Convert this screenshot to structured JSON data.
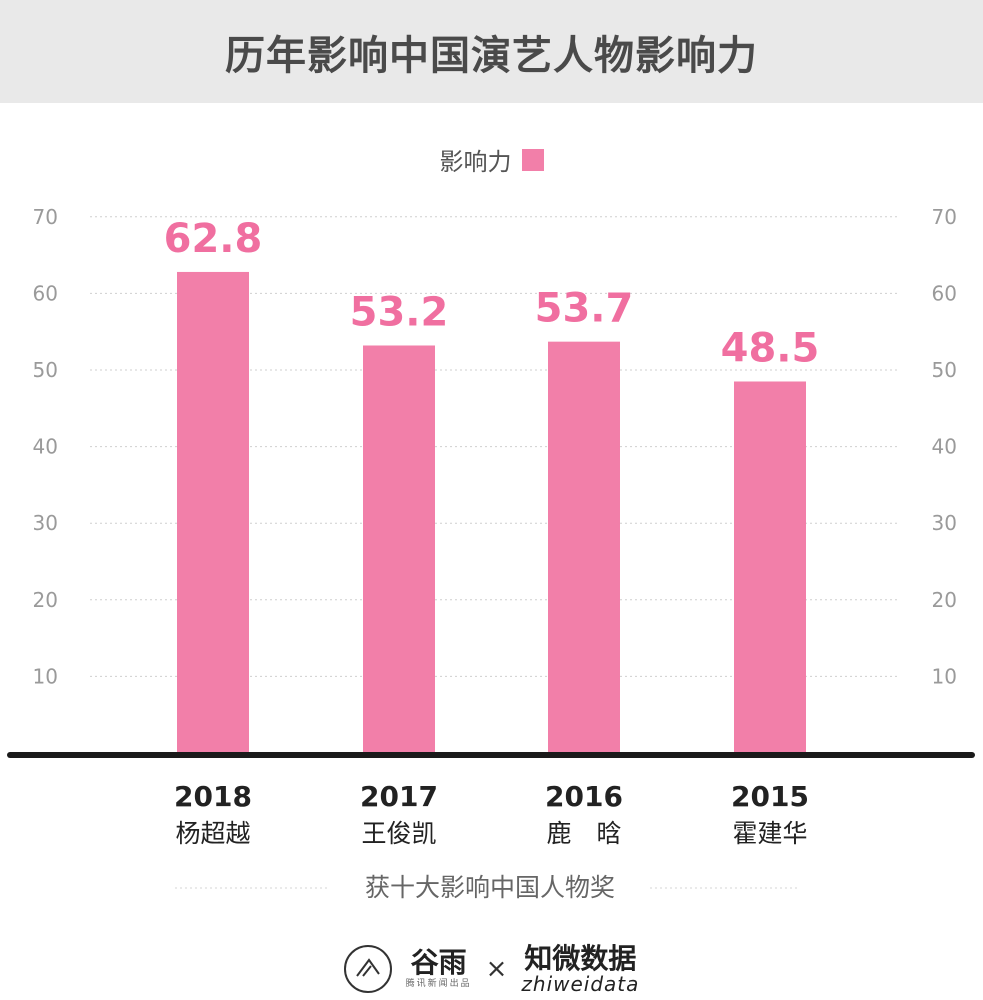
{
  "title": "历年影响中国演艺人物影响力",
  "footer": {
    "brand_left": "谷雨",
    "brand_left_sub": "腾讯新闻出品",
    "separator": "×",
    "brand_right": "知微数据",
    "brand_right_en": "zhiweidata"
  },
  "chart_data": {
    "type": "bar",
    "legend": [
      "影响力"
    ],
    "categories": [
      "2018",
      "2017",
      "2016",
      "2015"
    ],
    "names": [
      "杨超越",
      "王俊凯",
      "鹿　晗",
      "霍建华"
    ],
    "series": [
      {
        "name": "影响力",
        "values": [
          62.8,
          53.2,
          53.7,
          48.5
        ]
      }
    ],
    "data_labels": [
      "62.8",
      "53.2",
      "53.7",
      "48.5"
    ],
    "y_ticks": [
      10,
      20,
      30,
      40,
      50,
      60,
      70
    ],
    "ylim": [
      0,
      70
    ],
    "caption": "获十大影响中国人物奖",
    "grid": true,
    "color": "#f27fa9",
    "label_color": "#f06fa0"
  }
}
